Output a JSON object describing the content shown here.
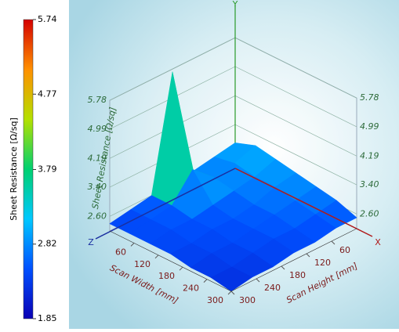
{
  "chart_data": {
    "type": "surface3d",
    "colormap": [
      "#0a00b4",
      "#0050ff",
      "#00c8ff",
      "#00d070",
      "#b4e000",
      "#ff9000",
      "#d40000"
    ],
    "colorbar": {
      "title": "Sheet Resistance [Ω/sq]",
      "lim": [
        1.85,
        5.74
      ],
      "ticks": [
        1.85,
        2.82,
        3.79,
        4.77,
        5.74
      ]
    },
    "axes": {
      "x": {
        "letter": "X",
        "title": "Scan Height [mm]",
        "lim": [
          0,
          300
        ],
        "ticks": [
          60,
          120,
          180,
          240,
          300
        ]
      },
      "y": {
        "letter": "Y",
        "title": "Sheet Resistance [Ω/sq]",
        "lim": [
          2.2,
          5.78
        ],
        "ticks": [
          {
            "value": 2.6,
            "label": "2.60"
          },
          {
            "value": 3.4,
            "label": "3.40"
          },
          4.19,
          4.99,
          5.78
        ]
      },
      "z": {
        "letter": "Z",
        "title": "Scan Width [mm]",
        "lim": [
          0,
          300
        ],
        "ticks": [
          60,
          120,
          180,
          240,
          300
        ]
      }
    },
    "width_values": [
      0,
      50,
      100,
      150,
      200,
      250,
      300
    ],
    "height_values": [
      0,
      50,
      100,
      150,
      200,
      250,
      300
    ],
    "values": [
      [
        2.9,
        2.8,
        2.7,
        5.7,
        2.6,
        2.5,
        2.4
      ],
      [
        3.1,
        2.9,
        2.8,
        3.3,
        2.6,
        2.5,
        2.4
      ],
      [
        3.0,
        2.8,
        2.7,
        2.6,
        2.5,
        2.5,
        2.4
      ],
      [
        2.9,
        2.8,
        2.6,
        2.5,
        2.5,
        2.4,
        2.4
      ],
      [
        2.8,
        2.7,
        2.6,
        2.5,
        2.4,
        2.4,
        2.3
      ],
      [
        2.7,
        2.6,
        2.5,
        2.5,
        2.4,
        2.3,
        2.3
      ],
      [
        2.5,
        2.5,
        2.4,
        2.4,
        2.3,
        2.3,
        2.2
      ]
    ]
  }
}
